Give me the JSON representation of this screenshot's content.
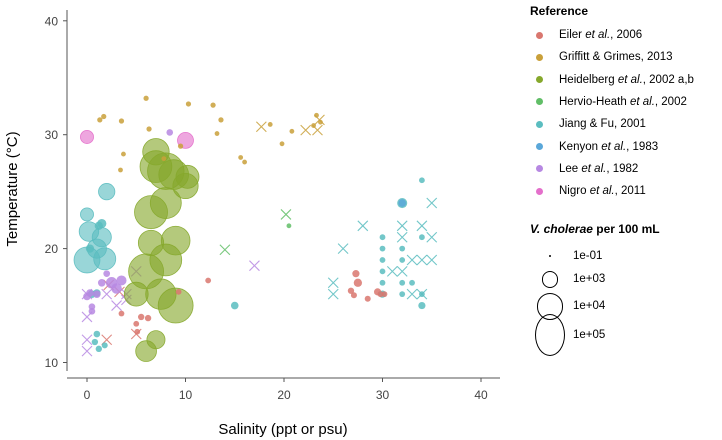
{
  "chart_data": {
    "type": "scatter",
    "title": "",
    "xlabel": "Salinity (ppt or psu)",
    "ylabel": "Temperature (°C)",
    "xlim": [
      -2,
      42
    ],
    "ylim": [
      9,
      41
    ],
    "xticks": [
      "0",
      "10",
      "20",
      "30",
      "40"
    ],
    "yticks": [
      "10",
      "20",
      "30",
      "40"
    ],
    "legend": {
      "reference_title": "Reference",
      "references": [
        {
          "key": "eiler",
          "parts": [
            "Eiler ",
            "et al.",
            ", 2006"
          ],
          "color": "#D9776F"
        },
        {
          "key": "griffitt",
          "parts": [
            "Griffitt & Grimes, 2013"
          ],
          "color": "#C9A03A"
        },
        {
          "key": "heidelberg",
          "parts": [
            "Heidelberg ",
            "et al.",
            ", 2002 a,b"
          ],
          "color": "#86A82C"
        },
        {
          "key": "hervio",
          "parts": [
            "Hervio-Heath ",
            "et al.",
            ", 2002"
          ],
          "color": "#61BE67"
        },
        {
          "key": "jiang",
          "parts": [
            "Jiang & Fu, 2001"
          ],
          "color": "#5BBDC0"
        },
        {
          "key": "kenyon",
          "parts": [
            "Kenyon ",
            "et al.",
            ", 1983"
          ],
          "color": "#5AA7D9"
        },
        {
          "key": "lee",
          "parts": [
            "Lee ",
            "et al.",
            ", 1982"
          ],
          "color": "#B788E2"
        },
        {
          "key": "nigro",
          "parts": [
            "Nigro ",
            "et al.",
            ", 2011"
          ],
          "color": "#E46FCB"
        }
      ],
      "size_title_parts": [
        "V. cholerae",
        " per 100 mL"
      ],
      "sizes": [
        {
          "label": "1e-01",
          "value": 0.1
        },
        {
          "label": "1e+03",
          "value": 1000
        },
        {
          "label": "1e+04",
          "value": 10000
        },
        {
          "label": "1e+05",
          "value": 100000
        }
      ]
    },
    "series": [
      {
        "name": "Eiler et al., 2006",
        "points": [
          {
            "x": 27.3,
            "y": 17.8,
            "s": 15
          },
          {
            "x": 27.5,
            "y": 17.0,
            "s": 30
          },
          {
            "x": 26.8,
            "y": 16.3,
            "s": 8
          },
          {
            "x": 29.5,
            "y": 16.2,
            "s": 15
          },
          {
            "x": 28.5,
            "y": 15.6,
            "s": 6
          },
          {
            "x": 29.8,
            "y": 16.0,
            "s": 6
          },
          {
            "x": 27.1,
            "y": 15.9,
            "s": 6
          },
          {
            "x": 5.5,
            "y": 14.0,
            "s": 8
          },
          {
            "x": 6.2,
            "y": 13.9,
            "s": 8
          },
          {
            "x": 5.0,
            "y": 13.4,
            "s": 5
          },
          {
            "x": 5.1,
            "y": 12.7,
            "s": 5
          },
          {
            "x": 3.5,
            "y": 14.3,
            "s": 5
          },
          {
            "x": 9.3,
            "y": 16.2,
            "s": 5
          },
          {
            "x": 12.3,
            "y": 17.2,
            "s": 5
          },
          {
            "x": 30.2,
            "y": 16.0,
            "s": 5
          }
        ],
        "crosses": [
          {
            "x": 2.0,
            "y": 12.0
          },
          {
            "x": 5.0,
            "y": 12.5
          },
          {
            "x": 2.2,
            "y": 16.8
          },
          {
            "x": 3.3,
            "y": 16.2
          }
        ]
      },
      {
        "name": "Griffitt & Grimes, 2013",
        "points": [
          {
            "x": 1.3,
            "y": 31.3,
            "s": 3
          },
          {
            "x": 1.7,
            "y": 31.6,
            "s": 3
          },
          {
            "x": 3.5,
            "y": 31.2,
            "s": 3
          },
          {
            "x": 6.0,
            "y": 33.2,
            "s": 3
          },
          {
            "x": 6.3,
            "y": 30.5,
            "s": 3
          },
          {
            "x": 10.3,
            "y": 32.7,
            "s": 3
          },
          {
            "x": 12.8,
            "y": 32.6,
            "s": 3
          },
          {
            "x": 13.6,
            "y": 31.3,
            "s": 3
          },
          {
            "x": 13.2,
            "y": 30.1,
            "s": 2
          },
          {
            "x": 16.0,
            "y": 27.6,
            "s": 2
          },
          {
            "x": 15.6,
            "y": 28.0,
            "s": 2
          },
          {
            "x": 18.6,
            "y": 30.9,
            "s": 2
          },
          {
            "x": 19.8,
            "y": 29.2,
            "s": 2
          },
          {
            "x": 20.8,
            "y": 30.3,
            "s": 2
          },
          {
            "x": 23.0,
            "y": 30.8,
            "s": 2
          },
          {
            "x": 23.7,
            "y": 31.1,
            "s": 2
          },
          {
            "x": 23.3,
            "y": 31.7,
            "s": 2
          },
          {
            "x": 3.7,
            "y": 28.3,
            "s": 2
          },
          {
            "x": 3.4,
            "y": 26.9,
            "s": 2
          },
          {
            "x": 7.8,
            "y": 27.9,
            "s": 2
          },
          {
            "x": 9.5,
            "y": 29.0,
            "s": 3
          }
        ],
        "crosses": [
          {
            "x": 17.7,
            "y": 30.7
          },
          {
            "x": 22.2,
            "y": 30.4
          },
          {
            "x": 23.4,
            "y": 30.4
          },
          {
            "x": 23.6,
            "y": 31.3
          }
        ]
      },
      {
        "name": "Heidelberg et al., 2002 a,b",
        "points": [
          {
            "x": 8.0,
            "y": 26.8,
            "s": 50000
          },
          {
            "x": 7.0,
            "y": 27.2,
            "s": 25000
          },
          {
            "x": 8.8,
            "y": 26.5,
            "s": 18000
          },
          {
            "x": 6.5,
            "y": 23.2,
            "s": 30000
          },
          {
            "x": 8.0,
            "y": 24.0,
            "s": 22000
          },
          {
            "x": 6.0,
            "y": 18.0,
            "s": 40000
          },
          {
            "x": 8.0,
            "y": 19.0,
            "s": 25000
          },
          {
            "x": 7.5,
            "y": 16.0,
            "s": 20000
          },
          {
            "x": 9.0,
            "y": 15.0,
            "s": 40000
          },
          {
            "x": 9.0,
            "y": 20.7,
            "s": 15000
          },
          {
            "x": 10.0,
            "y": 25.5,
            "s": 8000
          },
          {
            "x": 7.0,
            "y": 28.5,
            "s": 10000
          },
          {
            "x": 6.5,
            "y": 20.5,
            "s": 8000
          },
          {
            "x": 6.0,
            "y": 11.0,
            "s": 3000
          },
          {
            "x": 7.0,
            "y": 12.0,
            "s": 1500
          },
          {
            "x": 10.2,
            "y": 26.3,
            "s": 5000
          },
          {
            "x": 5.0,
            "y": 16.0,
            "s": 6000
          }
        ],
        "crosses": []
      },
      {
        "name": "Hervio-Heath et al., 2002",
        "points": [
          {
            "x": 20.5,
            "y": 22.0,
            "s": 2
          }
        ],
        "crosses": [
          {
            "x": 14.0,
            "y": 19.9
          },
          {
            "x": 20.2,
            "y": 23.0
          }
        ]
      },
      {
        "name": "Jiang & Fu, 2001",
        "points": [
          {
            "x": 0.0,
            "y": 19.0,
            "s": 9000
          },
          {
            "x": 1.8,
            "y": 19.1,
            "s": 4000
          },
          {
            "x": 1.5,
            "y": 21.0,
            "s": 2000
          },
          {
            "x": 0.2,
            "y": 21.5,
            "s": 2200
          },
          {
            "x": 0.0,
            "y": 23.0,
            "s": 300
          },
          {
            "x": 1.0,
            "y": 20.0,
            "s": 2000
          },
          {
            "x": 2.0,
            "y": 25.0,
            "s": 900
          },
          {
            "x": 1.5,
            "y": 22.2,
            "s": 50
          },
          {
            "x": 0.3,
            "y": 20.0,
            "s": 30
          },
          {
            "x": 1.2,
            "y": 22.0,
            "s": 30
          },
          {
            "x": 0.5,
            "y": 16.0,
            "s": 20
          },
          {
            "x": 1.0,
            "y": 16.1,
            "s": 20
          },
          {
            "x": 1.0,
            "y": 12.5,
            "s": 10
          },
          {
            "x": 1.2,
            "y": 11.2,
            "s": 8
          },
          {
            "x": 0.8,
            "y": 11.8,
            "s": 8
          },
          {
            "x": 1.8,
            "y": 11.5,
            "s": 6
          },
          {
            "x": 15.0,
            "y": 15.0,
            "s": 20
          },
          {
            "x": 32.0,
            "y": 24.0,
            "s": 80
          },
          {
            "x": 30.0,
            "y": 21.0,
            "s": 5
          },
          {
            "x": 30.0,
            "y": 20.0,
            "s": 5
          },
          {
            "x": 30.0,
            "y": 19.0,
            "s": 5
          },
          {
            "x": 30.0,
            "y": 18.0,
            "s": 5
          },
          {
            "x": 30.0,
            "y": 17.0,
            "s": 5
          },
          {
            "x": 30.0,
            "y": 16.0,
            "s": 15
          },
          {
            "x": 32.0,
            "y": 20.0,
            "s": 5
          },
          {
            "x": 32.0,
            "y": 19.0,
            "s": 5
          },
          {
            "x": 32.0,
            "y": 17.0,
            "s": 5
          },
          {
            "x": 32.0,
            "y": 16.0,
            "s": 5
          },
          {
            "x": 34.0,
            "y": 26.0,
            "s": 5
          },
          {
            "x": 34.0,
            "y": 21.0,
            "s": 5
          },
          {
            "x": 34.0,
            "y": 15.0,
            "s": 15
          },
          {
            "x": 34.0,
            "y": 16.0,
            "s": 5
          },
          {
            "x": 33.0,
            "y": 17.0,
            "s": 5
          }
        ],
        "crosses": [
          {
            "x": 25.0,
            "y": 16.0
          },
          {
            "x": 25.0,
            "y": 17.0
          },
          {
            "x": 26.0,
            "y": 20.0
          },
          {
            "x": 28.0,
            "y": 22.0
          },
          {
            "x": 31.0,
            "y": 18.0
          },
          {
            "x": 32.0,
            "y": 21.0
          },
          {
            "x": 32.0,
            "y": 18.0
          },
          {
            "x": 32.0,
            "y": 22.0
          },
          {
            "x": 33.0,
            "y": 19.0
          },
          {
            "x": 33.0,
            "y": 16.0
          },
          {
            "x": 34.0,
            "y": 19.0
          },
          {
            "x": 34.0,
            "y": 22.0
          },
          {
            "x": 35.0,
            "y": 19.0
          },
          {
            "x": 35.0,
            "y": 24.0
          },
          {
            "x": 35.0,
            "y": 21.0
          },
          {
            "x": 34.0,
            "y": 16.0
          }
        ]
      },
      {
        "name": "Kenyon et al., 1983",
        "points": [
          {
            "x": 32.0,
            "y": 24.0,
            "s": 20
          }
        ],
        "crosses": []
      },
      {
        "name": "Lee et al., 1982",
        "points": [
          {
            "x": 2.5,
            "y": 17.0,
            "s": 150
          },
          {
            "x": 3.0,
            "y": 16.5,
            "s": 100
          },
          {
            "x": 3.5,
            "y": 17.2,
            "s": 80
          },
          {
            "x": 0.0,
            "y": 15.8,
            "s": 20
          },
          {
            "x": 0.3,
            "y": 16.1,
            "s": 20
          },
          {
            "x": 1.0,
            "y": 16.0,
            "s": 20
          },
          {
            "x": 1.5,
            "y": 17.0,
            "s": 20
          },
          {
            "x": 0.5,
            "y": 14.5,
            "s": 10
          },
          {
            "x": 0.5,
            "y": 14.9,
            "s": 10
          },
          {
            "x": 2.0,
            "y": 17.8,
            "s": 10
          },
          {
            "x": 8.4,
            "y": 30.2,
            "s": 10
          }
        ],
        "crosses": [
          {
            "x": 0.0,
            "y": 14.0
          },
          {
            "x": 0.0,
            "y": 16.0
          },
          {
            "x": 0.0,
            "y": 11.0
          },
          {
            "x": 0.0,
            "y": 12.0
          },
          {
            "x": 2.0,
            "y": 16.0
          },
          {
            "x": 3.0,
            "y": 15.0
          },
          {
            "x": 4.0,
            "y": 15.5
          },
          {
            "x": 5.0,
            "y": 18.0
          },
          {
            "x": 17.0,
            "y": 18.5
          },
          {
            "x": 4.0,
            "y": 16.0
          }
        ]
      },
      {
        "name": "Nigro et al., 2011",
        "points": [
          {
            "x": 0.0,
            "y": 29.8,
            "s": 300
          },
          {
            "x": 10.0,
            "y": 29.5,
            "s": 800
          }
        ],
        "crosses": []
      }
    ]
  }
}
